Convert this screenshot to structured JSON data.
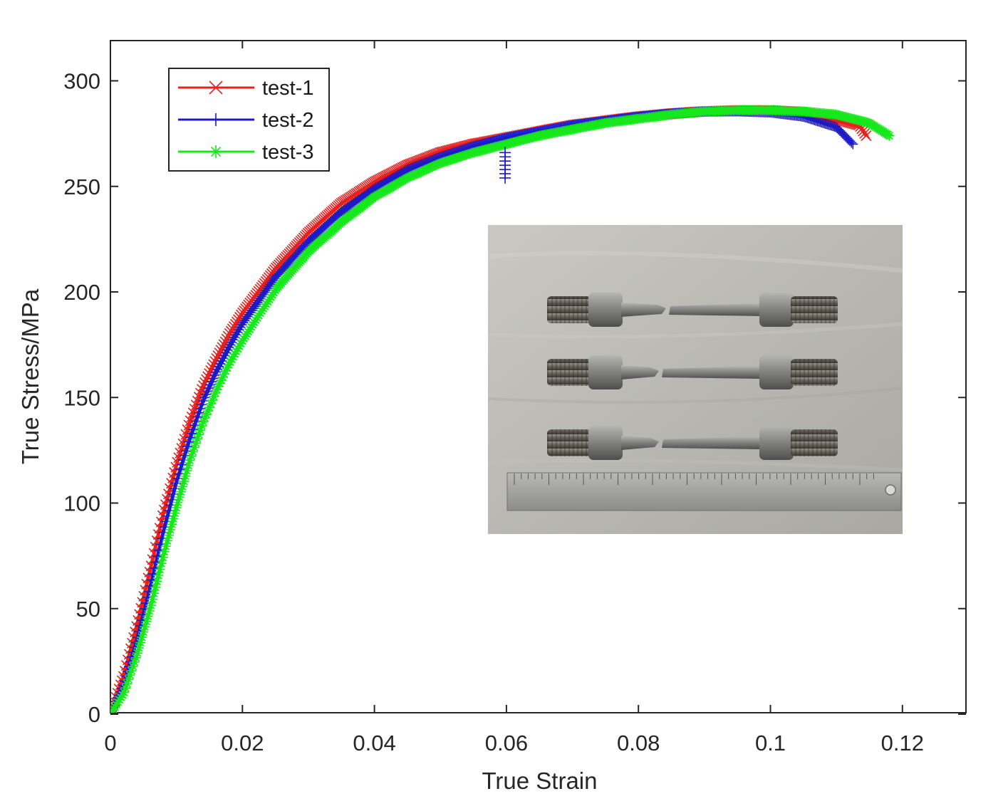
{
  "chart_data": {
    "type": "line",
    "title": "",
    "xlabel": "True Strain",
    "ylabel": "True Stress/MPa",
    "xlim": [
      0,
      0.13
    ],
    "ylim": [
      0,
      320
    ],
    "xticks": [
      0,
      0.02,
      0.04,
      0.06,
      0.08,
      0.1,
      0.12
    ],
    "xtick_labels": [
      "0",
      "0.02",
      "0.04",
      "0.06",
      "0.08",
      "0.1",
      "0.12"
    ],
    "yticks": [
      0,
      50,
      100,
      150,
      200,
      250,
      300
    ],
    "ytick_labels": [
      "0",
      "50",
      "100",
      "150",
      "200",
      "250",
      "300"
    ],
    "grid": false,
    "legend_position": "top-left",
    "series": [
      {
        "name": "test-1",
        "color": "#e8201e",
        "marker": "x",
        "x": [
          0,
          0.002,
          0.004,
          0.006,
          0.008,
          0.01,
          0.012,
          0.014,
          0.016,
          0.018,
          0.02,
          0.025,
          0.03,
          0.035,
          0.04,
          0.045,
          0.05,
          0.055,
          0.06,
          0.065,
          0.07,
          0.075,
          0.08,
          0.085,
          0.09,
          0.095,
          0.1,
          0.105,
          0.11,
          0.1135,
          0.1145
        ],
        "y": [
          0,
          18,
          42,
          68,
          95,
          118,
          138,
          155,
          168,
          180,
          190,
          211,
          228,
          242,
          252,
          260,
          266,
          270,
          273,
          276,
          279,
          281,
          283,
          284.5,
          285.5,
          286,
          286,
          285,
          282,
          279,
          274
        ]
      },
      {
        "name": "test-2",
        "color": "#1b1bc8",
        "marker": "+",
        "x": [
          0,
          0.002,
          0.004,
          0.006,
          0.008,
          0.01,
          0.012,
          0.014,
          0.016,
          0.018,
          0.02,
          0.025,
          0.03,
          0.035,
          0.04,
          0.045,
          0.05,
          0.055,
          0.06,
          0.065,
          0.07,
          0.075,
          0.08,
          0.085,
          0.09,
          0.095,
          0.1,
          0.105,
          0.11,
          0.1125
        ],
        "y": [
          0,
          14,
          35,
          60,
          86,
          110,
          130,
          148,
          162,
          174,
          185,
          207,
          224,
          238,
          249,
          258,
          264,
          269,
          273,
          276,
          279,
          281,
          283,
          284.5,
          285.5,
          285.5,
          285,
          283,
          278,
          270
        ]
      },
      {
        "name": "test-3",
        "color": "#17e81c",
        "marker": "*",
        "x": [
          0,
          0.002,
          0.004,
          0.006,
          0.008,
          0.01,
          0.012,
          0.014,
          0.016,
          0.018,
          0.02,
          0.025,
          0.03,
          0.035,
          0.04,
          0.045,
          0.05,
          0.055,
          0.06,
          0.065,
          0.07,
          0.075,
          0.08,
          0.085,
          0.09,
          0.095,
          0.1,
          0.105,
          0.11,
          0.115,
          0.118
        ],
        "y": [
          0,
          10,
          28,
          50,
          75,
          98,
          120,
          138,
          153,
          166,
          177,
          201,
          219,
          233,
          245,
          254,
          261,
          266,
          270,
          274,
          277,
          280,
          282,
          284,
          285.5,
          286,
          286,
          285.5,
          284,
          280,
          274
        ]
      }
    ],
    "annotations": [
      {
        "series": "test-2",
        "x": 0.0598,
        "y_range": [
          254,
          266
        ],
        "marker": "+"
      }
    ],
    "inset_image": {
      "position": "center-right",
      "subject": "three fractured tensile specimens above a metal ruler"
    }
  }
}
